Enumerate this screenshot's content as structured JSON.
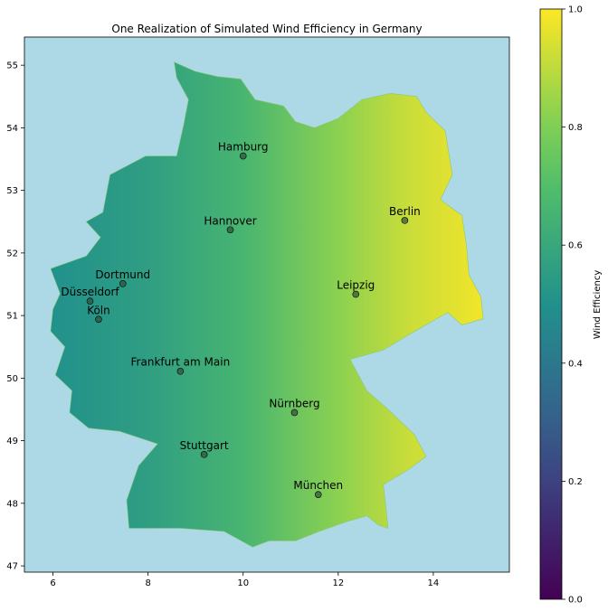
{
  "chart_data": {
    "type": "map",
    "title": "One Realization of Simulated Wind Efficiency in Germany",
    "xlim": [
      5.4,
      15.6
    ],
    "ylim": [
      46.9,
      55.45
    ],
    "x_ticks": [
      6,
      8,
      10,
      12,
      14
    ],
    "y_ticks": [
      47,
      48,
      49,
      50,
      51,
      52,
      53,
      54,
      55
    ],
    "background_color": "#add8e6",
    "colormap": "viridis",
    "colorbar": {
      "label": "Wind Efficiency",
      "range": [
        0.0,
        1.0
      ],
      "ticks": [
        "0.0",
        "0.2",
        "0.4",
        "0.6",
        "0.8",
        "1.0"
      ]
    },
    "cities": [
      {
        "name": "Hamburg",
        "lon": 10.0,
        "lat": 53.55
      },
      {
        "name": "Berlin",
        "lon": 13.4,
        "lat": 52.52
      },
      {
        "name": "Hannover",
        "lon": 9.73,
        "lat": 52.37
      },
      {
        "name": "Dortmund",
        "lon": 7.47,
        "lat": 51.51
      },
      {
        "name": "Düsseldorf",
        "lon": 6.78,
        "lat": 51.23
      },
      {
        "name": "Köln",
        "lon": 6.96,
        "lat": 50.94
      },
      {
        "name": "Leipzig",
        "lon": 12.37,
        "lat": 51.34
      },
      {
        "name": "Frankfurt am Main",
        "lon": 8.68,
        "lat": 50.11
      },
      {
        "name": "Nürnberg",
        "lon": 11.08,
        "lat": 49.45
      },
      {
        "name": "Stuttgart",
        "lon": 9.18,
        "lat": 48.78
      },
      {
        "name": "München",
        "lon": 11.58,
        "lat": 48.14
      }
    ],
    "gradient_stops": [
      {
        "lon": 6.0,
        "value": 0.5
      },
      {
        "lon": 8.0,
        "value": 0.56
      },
      {
        "lon": 10.0,
        "value": 0.66
      },
      {
        "lon": 12.0,
        "value": 0.82
      },
      {
        "lon": 13.5,
        "value": 0.92
      },
      {
        "lon": 15.0,
        "value": 0.98
      }
    ],
    "outline": [
      [
        8.55,
        55.05
      ],
      [
        9.0,
        54.9
      ],
      [
        9.45,
        54.82
      ],
      [
        9.95,
        54.78
      ],
      [
        10.25,
        54.45
      ],
      [
        10.85,
        54.35
      ],
      [
        11.1,
        54.1
      ],
      [
        11.5,
        54.0
      ],
      [
        12.0,
        54.15
      ],
      [
        12.5,
        54.45
      ],
      [
        13.1,
        54.55
      ],
      [
        13.65,
        54.5
      ],
      [
        13.85,
        54.25
      ],
      [
        14.25,
        53.95
      ],
      [
        14.4,
        53.25
      ],
      [
        14.15,
        52.85
      ],
      [
        14.6,
        52.6
      ],
      [
        14.7,
        52.1
      ],
      [
        14.75,
        51.65
      ],
      [
        15.0,
        51.3
      ],
      [
        15.05,
        50.95
      ],
      [
        14.6,
        50.85
      ],
      [
        14.3,
        51.05
      ],
      [
        13.5,
        50.7
      ],
      [
        12.95,
        50.45
      ],
      [
        12.25,
        50.3
      ],
      [
        12.6,
        49.8
      ],
      [
        13.05,
        49.5
      ],
      [
        13.6,
        49.1
      ],
      [
        13.85,
        48.75
      ],
      [
        13.5,
        48.55
      ],
      [
        12.95,
        48.3
      ],
      [
        13.05,
        47.6
      ],
      [
        12.85,
        47.65
      ],
      [
        12.6,
        47.8
      ],
      [
        12.15,
        47.7
      ],
      [
        11.6,
        47.55
      ],
      [
        11.1,
        47.4
      ],
      [
        10.55,
        47.4
      ],
      [
        10.2,
        47.3
      ],
      [
        9.6,
        47.55
      ],
      [
        8.7,
        47.6
      ],
      [
        7.6,
        47.6
      ],
      [
        7.55,
        48.05
      ],
      [
        7.8,
        48.6
      ],
      [
        8.2,
        48.95
      ],
      [
        7.4,
        49.15
      ],
      [
        6.75,
        49.2
      ],
      [
        6.35,
        49.45
      ],
      [
        6.4,
        49.8
      ],
      [
        6.05,
        50.05
      ],
      [
        6.25,
        50.5
      ],
      [
        5.95,
        50.75
      ],
      [
        6.0,
        51.1
      ],
      [
        6.15,
        51.35
      ],
      [
        5.95,
        51.75
      ],
      [
        6.7,
        51.95
      ],
      [
        7.0,
        52.25
      ],
      [
        6.7,
        52.5
      ],
      [
        7.05,
        52.65
      ],
      [
        7.2,
        53.25
      ],
      [
        7.95,
        53.55
      ],
      [
        8.6,
        53.55
      ],
      [
        8.75,
        54.05
      ],
      [
        8.85,
        54.45
      ],
      [
        8.6,
        54.8
      ]
    ]
  }
}
